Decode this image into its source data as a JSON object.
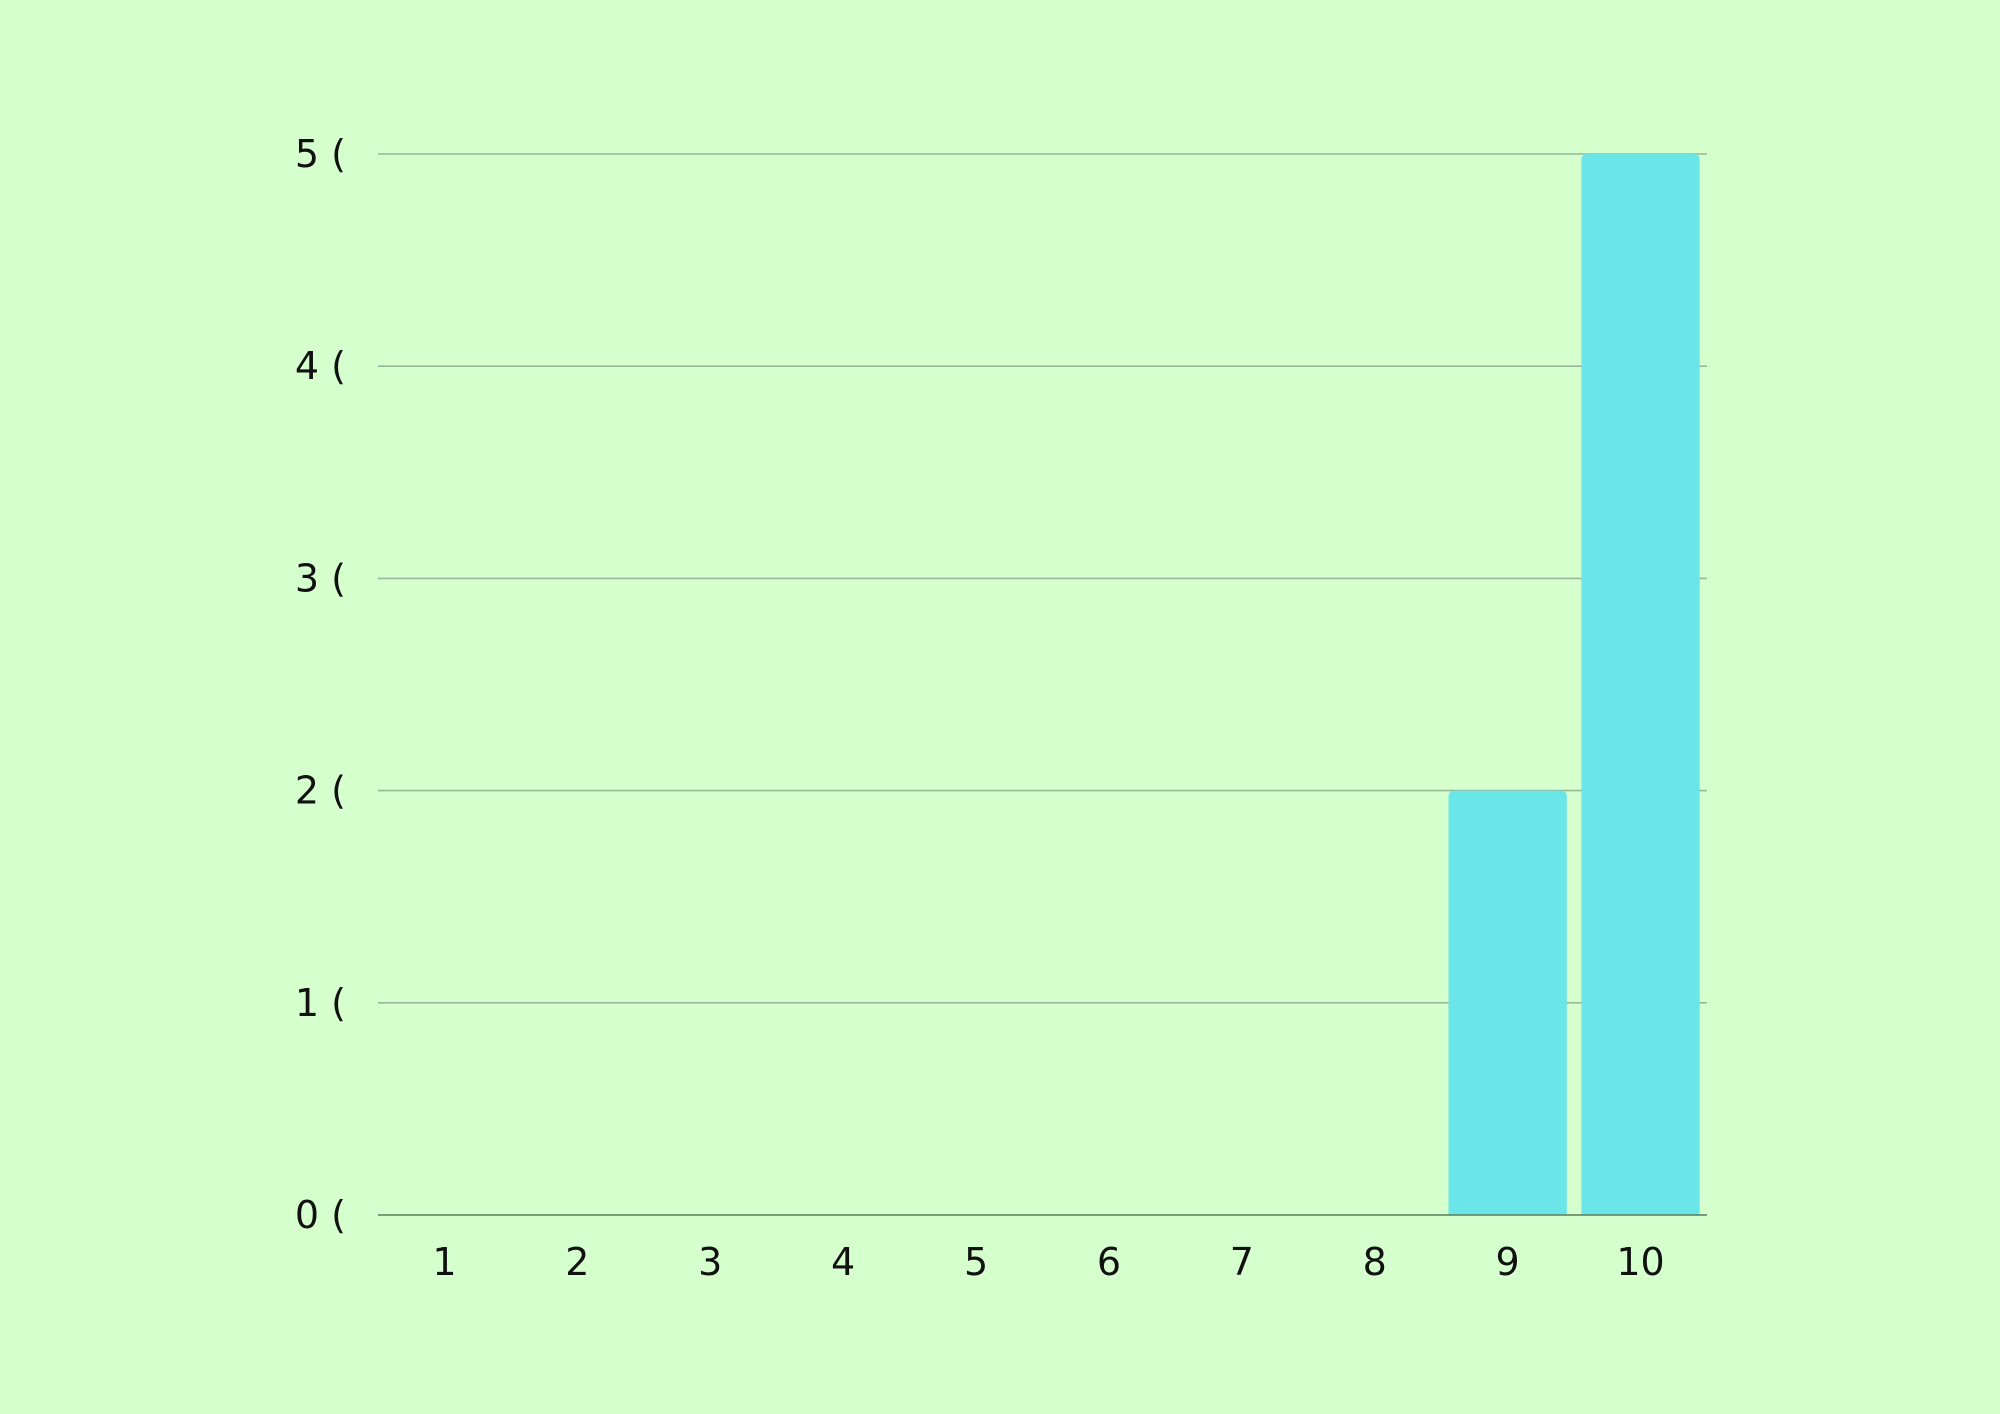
{
  "chart_data": {
    "type": "bar",
    "categories": [
      "1",
      "2",
      "3",
      "4",
      "5",
      "6",
      "7",
      "8",
      "9",
      "10"
    ],
    "values": [
      0,
      0,
      0,
      0,
      0,
      0,
      0,
      0,
      2,
      5
    ],
    "y_tick_labels": [
      "0 (",
      "1 (",
      "2 (",
      "3 (",
      "4 (",
      "5 ("
    ],
    "y_ticks": [
      0,
      1,
      2,
      3,
      4,
      5
    ],
    "ylim": [
      0,
      5
    ],
    "title": "",
    "xlabel": "",
    "ylabel": "",
    "grid": true,
    "legend": "none",
    "colors": {
      "background": "#d5ffcd",
      "bar": "#6be6e8",
      "grid": "#9ab79a",
      "text": "#111111"
    }
  }
}
